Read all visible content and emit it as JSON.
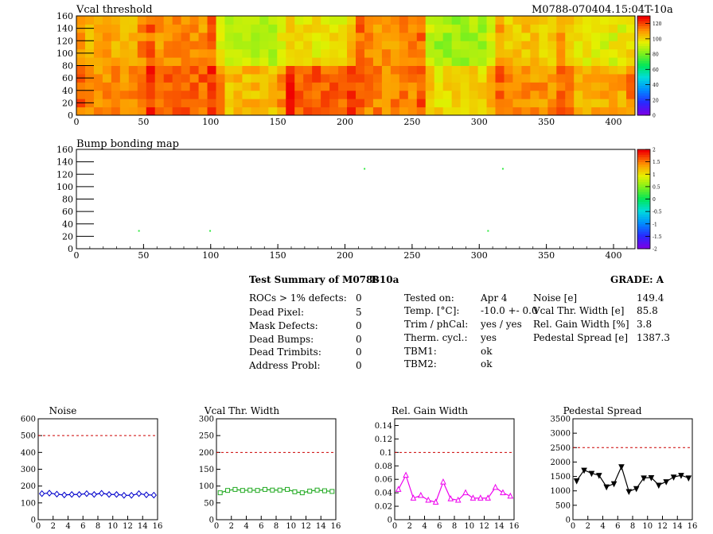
{
  "header": {
    "title": "Vcal threshold",
    "module_tag": "M0788-070404.15:04T-10a"
  },
  "maps": [
    {
      "id": "vcal",
      "title": "Vcal threshold",
      "chart_data": {
        "type": "heatmap",
        "xlim": [
          0,
          416
        ],
        "ylim": [
          0,
          160
        ],
        "xticks": [
          0,
          50,
          100,
          150,
          200,
          250,
          300,
          350,
          400
        ],
        "yticks": [
          0,
          20,
          40,
          60,
          80,
          100,
          120,
          140,
          160
        ],
        "zlim": [
          0,
          130
        ],
        "zticks": [
          0,
          20,
          40,
          60,
          80,
          100,
          120
        ],
        "roc_cols": 8,
        "roc_rows": 2,
        "roc_width": 52,
        "roc_height": 80,
        "roc_mean_values_top": [
          108,
          112,
          90,
          98,
          112,
          86,
          104,
          96
        ],
        "roc_mean_values_bottom": [
          112,
          118,
          106,
          118,
          114,
          100,
          112,
          108
        ]
      }
    },
    {
      "id": "bump",
      "title": "Bump bonding map",
      "chart_data": {
        "type": "heatmap",
        "xlim": [
          0,
          416
        ],
        "ylim": [
          0,
          160
        ],
        "xticks": [
          0,
          50,
          100,
          150,
          200,
          250,
          300,
          350,
          400
        ],
        "yticks": [
          0,
          20,
          40,
          60,
          80,
          100,
          120,
          140,
          160
        ],
        "zlim": [
          -2,
          2
        ],
        "zticks": [
          -2,
          -1.5,
          -1,
          -0.5,
          0,
          0.5,
          1,
          1.5,
          2
        ],
        "points": [
          {
            "x": 46,
            "y": 30,
            "z": 0.2
          },
          {
            "x": 99,
            "y": 30,
            "z": 0.2
          },
          {
            "x": 214,
            "y": 130,
            "z": 0.2
          },
          {
            "x": 317,
            "y": 130,
            "z": 0.2
          },
          {
            "x": 306,
            "y": 30,
            "z": 0.2
          }
        ]
      }
    }
  ],
  "summary": {
    "title": "Test Summary of M0788",
    "temp_tag": "T-10a",
    "grade": "GRADE:  A",
    "col1": [
      {
        "label": "ROCs > 1% defects:",
        "value": "0"
      },
      {
        "label": "Dead Pixel:",
        "value": "5"
      },
      {
        "label": "Mask Defects:",
        "value": "0"
      },
      {
        "label": "Dead Bumps:",
        "value": "0"
      },
      {
        "label": "Dead Trimbits:",
        "value": "0"
      },
      {
        "label": "Address Probl:",
        "value": "0"
      }
    ],
    "col2": [
      {
        "label": "Tested on:",
        "value": "Apr 4"
      },
      {
        "label": "Temp. [°C]:",
        "value": "-10.0 +- 0.0"
      },
      {
        "label": "Trim / phCal:",
        "value": "yes / yes"
      },
      {
        "label": "Therm. cycl.:",
        "value": "yes"
      },
      {
        "label": "TBM1:",
        "value": "ok"
      },
      {
        "label": "TBM2:",
        "value": "ok"
      }
    ],
    "col3": [
      {
        "label": "Noise [e]",
        "value": "149.4"
      },
      {
        "label": "Vcal Thr. Width [e]",
        "value": "85.8"
      },
      {
        "label": "Rel. Gain Width [%]",
        "value": "3.8"
      },
      {
        "label": "Pedestal Spread [e]",
        "value": "1387.3"
      }
    ]
  },
  "chart_data": [
    {
      "type": "line",
      "title": "Noise",
      "color": "#0000cc",
      "marker": "diamond",
      "x": [
        0,
        1,
        2,
        3,
        4,
        5,
        6,
        7,
        8,
        9,
        10,
        11,
        12,
        13,
        14,
        15
      ],
      "values": [
        155,
        158,
        152,
        147,
        150,
        150,
        155,
        150,
        157,
        150,
        150,
        145,
        145,
        155,
        148,
        146
      ],
      "threshold": 500,
      "ylim": [
        0,
        600
      ],
      "yticks": [
        0,
        100,
        200,
        300,
        400,
        500,
        600
      ],
      "xticks": [
        0,
        2,
        4,
        6,
        8,
        10,
        12,
        14,
        16
      ]
    },
    {
      "type": "line",
      "title": "Vcal Thr. Width",
      "color": "#22aa22",
      "marker": "square",
      "x": [
        0,
        1,
        2,
        3,
        4,
        5,
        6,
        7,
        8,
        9,
        10,
        11,
        12,
        13,
        14,
        15
      ],
      "values": [
        80,
        87,
        90,
        87,
        88,
        87,
        90,
        88,
        88,
        90,
        83,
        80,
        85,
        88,
        86,
        84
      ],
      "threshold": 200,
      "ylim": [
        0,
        300
      ],
      "yticks": [
        0,
        50,
        100,
        150,
        200,
        250,
        300
      ],
      "xticks": [
        0,
        2,
        4,
        6,
        8,
        10,
        12,
        14,
        16
      ]
    },
    {
      "type": "line",
      "title": "Rel. Gain Width",
      "color": "#ee00ee",
      "marker": "triangle",
      "x": [
        0,
        1,
        2,
        3,
        4,
        5,
        6,
        7,
        8,
        9,
        10,
        11,
        12,
        13,
        14,
        15
      ],
      "values": [
        0.045,
        0.066,
        0.032,
        0.036,
        0.029,
        0.026,
        0.056,
        0.031,
        0.029,
        0.04,
        0.032,
        0.032,
        0.032,
        0.048,
        0.04,
        0.035
      ],
      "threshold": 0.1,
      "ylim": [
        0,
        0.15
      ],
      "yticks": [
        0,
        0.02,
        0.04,
        0.06,
        0.08,
        0.1,
        0.12,
        0.14
      ],
      "xticks": [
        0,
        2,
        4,
        6,
        8,
        10,
        12,
        14,
        16
      ]
    },
    {
      "type": "line",
      "title": "Pedestal Spread",
      "color": "#000000",
      "marker": "triangle-down",
      "x": [
        0,
        1,
        2,
        3,
        4,
        5,
        6,
        7,
        8,
        9,
        10,
        11,
        12,
        13,
        14,
        15
      ],
      "values": [
        1350,
        1720,
        1610,
        1540,
        1140,
        1250,
        1840,
        980,
        1080,
        1450,
        1460,
        1200,
        1320,
        1480,
        1540,
        1450
      ],
      "threshold": 2500,
      "ylim": [
        0,
        3500
      ],
      "yticks": [
        0,
        500,
        1000,
        1500,
        2000,
        2500,
        3000,
        3500
      ],
      "xticks": [
        0,
        2,
        4,
        6,
        8,
        10,
        12,
        14,
        16
      ]
    }
  ]
}
